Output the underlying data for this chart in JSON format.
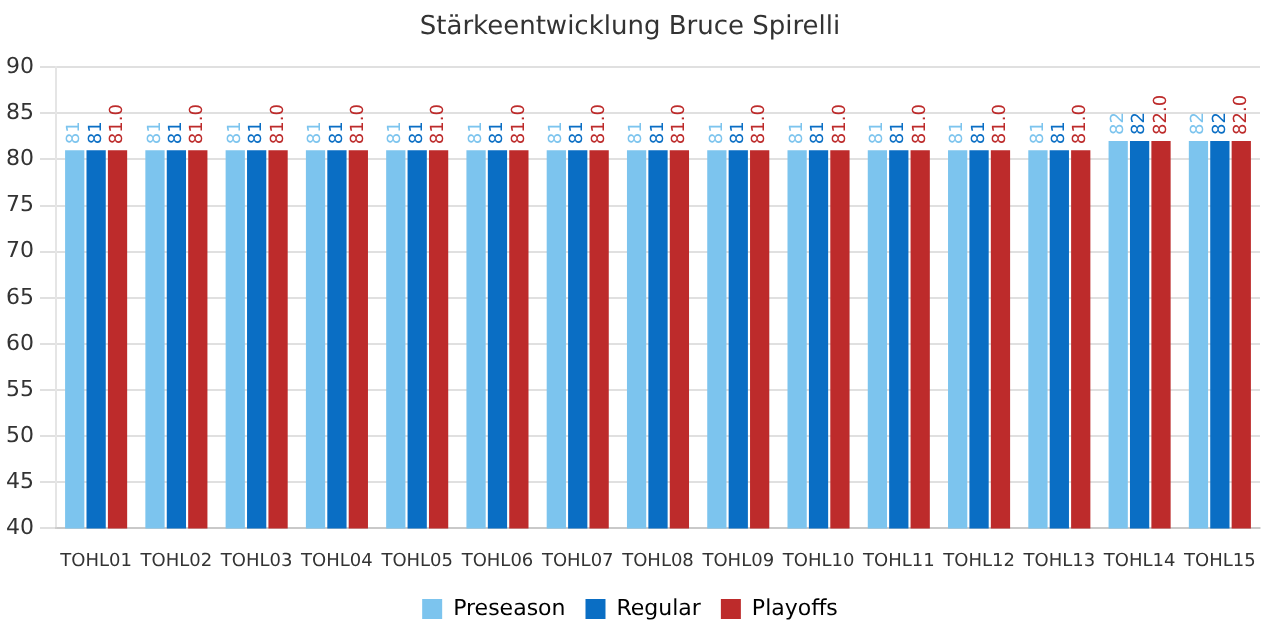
{
  "chart_data": {
    "type": "bar",
    "title": "Stärkeentwicklung Bruce Spirelli",
    "categories": [
      "TOHL01",
      "TOHL02",
      "TOHL03",
      "TOHL04",
      "TOHL05",
      "TOHL06",
      "TOHL07",
      "TOHL08",
      "TOHL09",
      "TOHL10",
      "TOHL11",
      "TOHL12",
      "TOHL13",
      "TOHL14",
      "TOHL15"
    ],
    "series": [
      {
        "name": "Preseason",
        "color": "#7cc4ee",
        "values": [
          81,
          81,
          81,
          81,
          81,
          81,
          81,
          81,
          81,
          81,
          81,
          81,
          81,
          82,
          82
        ],
        "value_labels": [
          "81",
          "81",
          "81",
          "81",
          "81",
          "81",
          "81",
          "81",
          "81",
          "81",
          "81",
          "81",
          "81",
          "82",
          "82"
        ]
      },
      {
        "name": "Regular",
        "color": "#0a6ec4",
        "values": [
          81,
          81,
          81,
          81,
          81,
          81,
          81,
          81,
          81,
          81,
          81,
          81,
          81,
          82,
          82
        ],
        "value_labels": [
          "81",
          "81",
          "81",
          "81",
          "81",
          "81",
          "81",
          "81",
          "81",
          "81",
          "81",
          "81",
          "81",
          "82",
          "82"
        ]
      },
      {
        "name": "Playoffs",
        "color": "#bd2b2b",
        "values": [
          81,
          81,
          81,
          81,
          81,
          81,
          81,
          81,
          81,
          81,
          81,
          81,
          81,
          82,
          82
        ],
        "value_labels": [
          "81.0",
          "81.0",
          "81.0",
          "81.0",
          "81.0",
          "81.0",
          "81.0",
          "81.0",
          "81.0",
          "81.0",
          "81.0",
          "81.0",
          "81.0",
          "82.0",
          "82.0"
        ]
      }
    ],
    "ylim": [
      40,
      90
    ],
    "yticks": [
      40,
      45,
      50,
      55,
      60,
      65,
      70,
      75,
      80,
      85,
      90
    ],
    "grid": "y",
    "legend": "bottom"
  }
}
